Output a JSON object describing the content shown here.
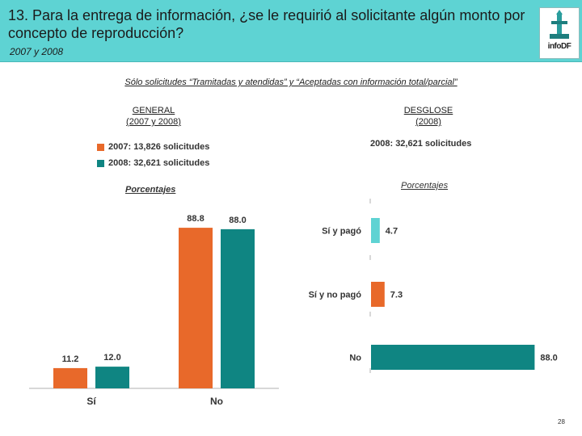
{
  "header": {
    "title": "13. Para la entrega de información, ¿se le requirió al solicitante algún monto por concepto de reproducción?",
    "subtitle": "2007 y 2008",
    "logo_text": "infoDF"
  },
  "note": "Sólo solicitudes “Tramitadas y atendidas” y “Aceptadas con información total/parcial”",
  "page_number": "28",
  "colors": {
    "orange": "#e8692a",
    "teal": "#0f8582",
    "cyan": "#5ed3d3",
    "axis": "#b0b0b0"
  },
  "chart_data": [
    {
      "type": "bar",
      "title_line1": "GENERAL",
      "title_line2": "(2007 y 2008)",
      "subtitle": "Porcentajes",
      "categories": [
        "Sí",
        "No"
      ],
      "series": [
        {
          "name": "2007: 13,826 solicitudes",
          "values": [
            11.2,
            88.8
          ],
          "labels": [
            "11.2",
            "88.8"
          ],
          "color": "#e8692a"
        },
        {
          "name": "2008: 32,621 solicitudes",
          "values": [
            12.0,
            88.0
          ],
          "labels": [
            "12.0",
            "88.0"
          ],
          "color": "#0f8582"
        }
      ],
      "ylim": [
        0,
        100
      ],
      "grid": false,
      "legend": "top-left"
    },
    {
      "type": "bar",
      "orientation": "horizontal",
      "title_line1": "DESGLOSE",
      "title_line2": "(2008)",
      "total": "2008: 32,621 solicitudes",
      "subtitle": "Porcentajes",
      "categories": [
        "Sí y pagó",
        "Sí y no pagó",
        "No"
      ],
      "values": [
        4.7,
        7.3,
        88.0
      ],
      "labels": [
        "4.7",
        "7.3",
        "88.0"
      ],
      "colors": [
        "#5ed3d3",
        "#e8692a",
        "#0f8582"
      ],
      "xlim": [
        0,
        100
      ],
      "grid": false
    }
  ]
}
